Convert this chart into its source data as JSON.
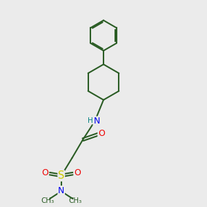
{
  "bg_color": "#ebebeb",
  "bond_color": "#2a5c24",
  "bond_width": 1.5,
  "atom_colors": {
    "N": "#0000ee",
    "O": "#ee0000",
    "S": "#cccc00",
    "H": "#008080"
  },
  "font_size": 8.5,
  "xlim": [
    2.5,
    7.5
  ],
  "ylim": [
    0.5,
    9.8
  ]
}
